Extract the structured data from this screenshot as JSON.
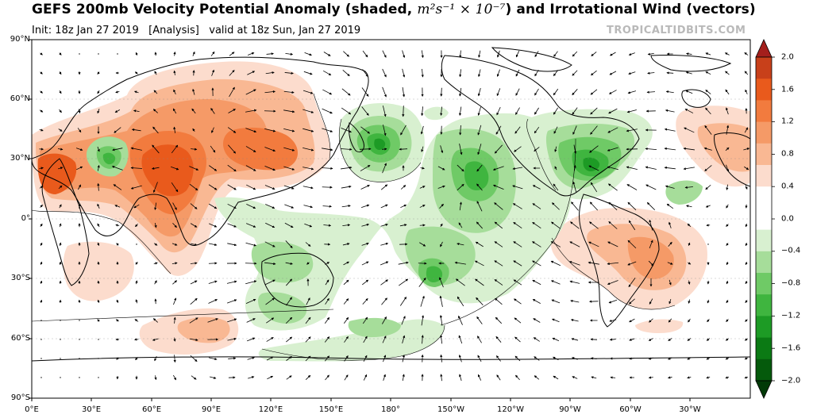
{
  "header": {
    "title_prefix": "GEFS 200mb Velocity Potential Anomaly (shaded, ",
    "title_math": "m²s⁻¹ × 10⁻⁷",
    "title_suffix": ") and Irrotational Wind (vectors)",
    "init": "Init: 18z Jan 27 2019",
    "run_type": "[Analysis]",
    "valid": "valid at 18z Sun, Jan 27 2019",
    "brand": "TROPICALTIDBITS.COM"
  },
  "map": {
    "lat_labels": [
      "90°N",
      "60°N",
      "30°N",
      "0°",
      "30°S",
      "60°S",
      "90°S"
    ],
    "lon_labels": [
      "0°E",
      "30°E",
      "60°E",
      "90°E",
      "120°E",
      "150°E",
      "180°",
      "150°W",
      "120°W",
      "90°W",
      "60°W",
      "30°W"
    ],
    "center_longitude": "180°",
    "colors": {
      "ocean": "#ffffff",
      "coastline": "#000000",
      "positive_scale": [
        "#fcdccd",
        "#f9b893",
        "#f59a67",
        "#f27b3e",
        "#e95a1c",
        "#c8401a"
      ],
      "negative_scale": [
        "#d8f0d0",
        "#a6dd9a",
        "#6fca66",
        "#3fb53f",
        "#1d9b25",
        "#0b7a14"
      ]
    },
    "features": [
      {
        "name": "velocity-potential-positive-anomaly",
        "region": "Middle East / Central Asia"
      },
      {
        "name": "velocity-potential-positive-anomaly",
        "region": "South America"
      },
      {
        "name": "velocity-potential-negative-anomaly",
        "region": "Central Pacific"
      },
      {
        "name": "velocity-potential-negative-anomaly",
        "region": "Eastern North America"
      },
      {
        "name": "velocity-potential-negative-anomaly",
        "region": "Western North Pacific"
      }
    ]
  },
  "colorbar": {
    "labels": [
      "2.0",
      "1.6",
      "1.2",
      "0.8",
      "0.4",
      "0.0",
      "−0.4",
      "−0.8",
      "−1.2",
      "−1.6",
      "−2.0"
    ],
    "colors": [
      "#a41f1c",
      "#c8401a",
      "#e95a1c",
      "#f27b3e",
      "#f59a67",
      "#f9b893",
      "#fcdccd",
      "#ffffff",
      "#ffffff",
      "#d8f0d0",
      "#a6dd9a",
      "#6fca66",
      "#3fb53f",
      "#1d9b25",
      "#0b7a14",
      "#055a0c",
      "#023a07"
    ],
    "min": -2.0,
    "max": 2.0,
    "extend": "both"
  }
}
